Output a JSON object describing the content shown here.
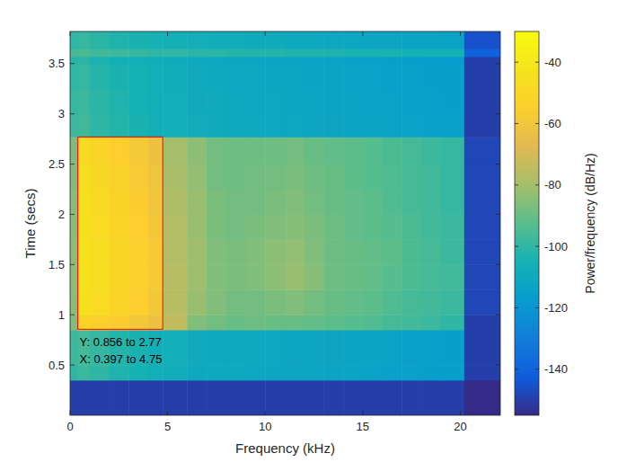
{
  "chart_data": {
    "type": "heatmap",
    "x_label": "Frequency (kHz)",
    "y_label": "Time (secs)",
    "xlim": [
      0,
      22.05
    ],
    "ylim": [
      0,
      3.82
    ],
    "xticks": [
      0,
      5,
      10,
      15,
      20
    ],
    "yticks": [
      0.5,
      1,
      1.5,
      2,
      2.5,
      3,
      3.5
    ],
    "x_edges": [
      0,
      0.4,
      1,
      2,
      3,
      4,
      4.75,
      6,
      7,
      8,
      9,
      10,
      11,
      12,
      13,
      14,
      15,
      16,
      17,
      18,
      19,
      20.2,
      22.05
    ],
    "y_edges": [
      0,
      0.35,
      0.5,
      0.85,
      1.0,
      1.25,
      1.5,
      1.75,
      2.0,
      2.25,
      2.5,
      2.77,
      3.0,
      3.25,
      3.5,
      3.57,
      3.65,
      3.82
    ],
    "cells": [
      [
        -150,
        -150,
        -150,
        -150,
        -150,
        -150,
        -150,
        -150,
        -150,
        -150,
        -150,
        -150,
        -150,
        -150,
        -150,
        -150,
        -150,
        -150,
        -150,
        -150,
        -150,
        -155
      ],
      [
        -100,
        -98,
        -100,
        -103,
        -105,
        -107,
        -108,
        -110,
        -110,
        -110,
        -111,
        -112,
        -112,
        -112,
        -113,
        -113,
        -114,
        -115,
        -115,
        -116,
        -116,
        -150
      ],
      [
        -98,
        -96,
        -99,
        -102,
        -104,
        -106,
        -107,
        -109,
        -110,
        -110,
        -110,
        -111,
        -112,
        -112,
        -112,
        -113,
        -113,
        -114,
        -115,
        -115,
        -116,
        -150
      ],
      [
        -86,
        -52,
        -54,
        -56,
        -59,
        -62,
        -74,
        -86,
        -88,
        -90,
        -89,
        -90,
        -90,
        -91,
        -92,
        -93,
        -94,
        -96,
        -97,
        -98,
        -100,
        -150
      ],
      [
        -85,
        -44,
        -47,
        -51,
        -55,
        -59,
        -76,
        -82,
        -86,
        -88,
        -88,
        -87,
        -86,
        -88,
        -90,
        -91,
        -92,
        -94,
        -96,
        -97,
        -98,
        -148
      ],
      [
        -84,
        -43,
        -46,
        -50,
        -54,
        -58,
        -76,
        -81,
        -86,
        -87,
        -86,
        -84,
        -82,
        -85,
        -89,
        -90,
        -91,
        -93,
        -95,
        -96,
        -97,
        -148
      ],
      [
        -84,
        -43,
        -46,
        -50,
        -54,
        -58,
        -77,
        -81,
        -86,
        -87,
        -86,
        -84,
        -83,
        -86,
        -89,
        -90,
        -91,
        -92,
        -95,
        -96,
        -98,
        -148
      ],
      [
        -85,
        -44,
        -47,
        -51,
        -55,
        -59,
        -77,
        -82,
        -87,
        -88,
        -87,
        -86,
        -85,
        -87,
        -89,
        -91,
        -92,
        -93,
        -95,
        -97,
        -98,
        -148
      ],
      [
        -85,
        -45,
        -48,
        -52,
        -56,
        -60,
        -78,
        -82,
        -87,
        -88,
        -88,
        -87,
        -86,
        -88,
        -90,
        -91,
        -92,
        -94,
        -96,
        -97,
        -99,
        -148
      ],
      [
        -86,
        -46,
        -49,
        -53,
        -57,
        -61,
        -79,
        -83,
        -88,
        -89,
        -88,
        -88,
        -87,
        -89,
        -90,
        -92,
        -93,
        -94,
        -96,
        -97,
        -99,
        -148
      ],
      [
        -87,
        -48,
        -51,
        -55,
        -58,
        -62,
        -80,
        -84,
        -88,
        -89,
        -89,
        -89,
        -88,
        -90,
        -91,
        -92,
        -93,
        -95,
        -96,
        -98,
        -99,
        -148
      ],
      [
        -98,
        -97,
        -100,
        -102,
        -104,
        -106,
        -107,
        -108,
        -109,
        -110,
        -110,
        -111,
        -111,
        -112,
        -112,
        -113,
        -113,
        -114,
        -114,
        -115,
        -115,
        -150
      ],
      [
        -99,
        -98,
        -101,
        -103,
        -105,
        -106,
        -107,
        -109,
        -109,
        -110,
        -111,
        -111,
        -112,
        -112,
        -113,
        -113,
        -114,
        -114,
        -115,
        -115,
        -116,
        -150
      ],
      [
        -100,
        -99,
        -102,
        -104,
        -105,
        -107,
        -108,
        -109,
        -110,
        -111,
        -111,
        -112,
        -112,
        -113,
        -113,
        -114,
        -114,
        -115,
        -115,
        -116,
        -116,
        -150
      ],
      [
        -102,
        -101,
        -104,
        -106,
        -107,
        -108,
        -109,
        -110,
        -111,
        -112,
        -112,
        -113,
        -113,
        -114,
        -114,
        -115,
        -115,
        -116,
        -116,
        -117,
        -117,
        -150
      ],
      [
        -96,
        -95,
        -97,
        -98,
        -99,
        -100,
        -100,
        -101,
        -101,
        -102,
        -102,
        -102,
        -103,
        -103,
        -103,
        -104,
        -104,
        -104,
        -105,
        -105,
        -105,
        -140
      ],
      [
        -100,
        -99,
        -101,
        -103,
        -104,
        -105,
        -106,
        -107,
        -108,
        -108,
        -109,
        -109,
        -110,
        -110,
        -111,
        -111,
        -112,
        -112,
        -113,
        -113,
        -114,
        -145
      ]
    ],
    "colorbar": {
      "label": "Power/frequency (dB/Hz)",
      "range": [
        -155,
        -30
      ],
      "ticks": [
        -140,
        -120,
        -100,
        -80,
        -60,
        -40
      ]
    },
    "annotations": [
      {
        "x": [
          0.397,
          4.75
        ],
        "y": [
          0.856,
          2.77
        ],
        "labels": [
          "Y: 0.856 to 2.77",
          "X: 0.397 to 4.75"
        ],
        "color": "#ff0000"
      }
    ]
  }
}
